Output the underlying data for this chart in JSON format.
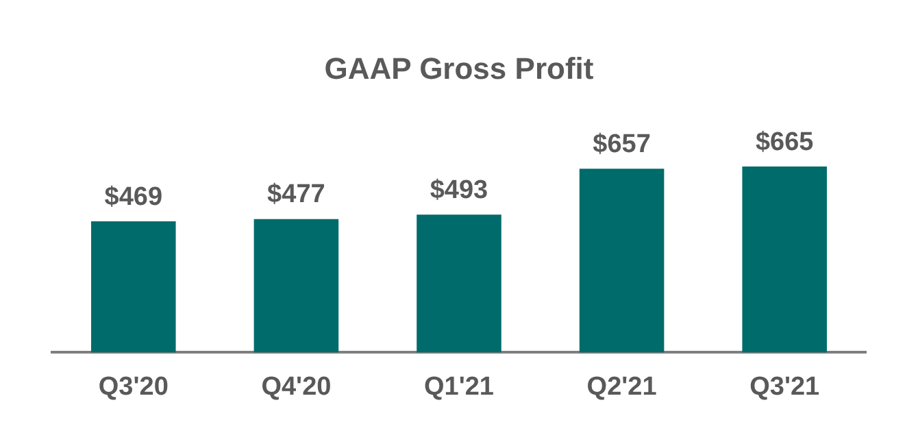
{
  "chart_data": {
    "type": "bar",
    "title": "GAAP Gross Profit",
    "categories": [
      "Q3'20",
      "Q4'20",
      "Q1'21",
      "Q2'21",
      "Q3'21"
    ],
    "values": [
      469,
      477,
      493,
      657,
      665
    ],
    "value_labels": [
      "$469",
      "$477",
      "$493",
      "$657",
      "$665"
    ],
    "color": "#006b6b",
    "grid": false,
    "legend": false
  }
}
